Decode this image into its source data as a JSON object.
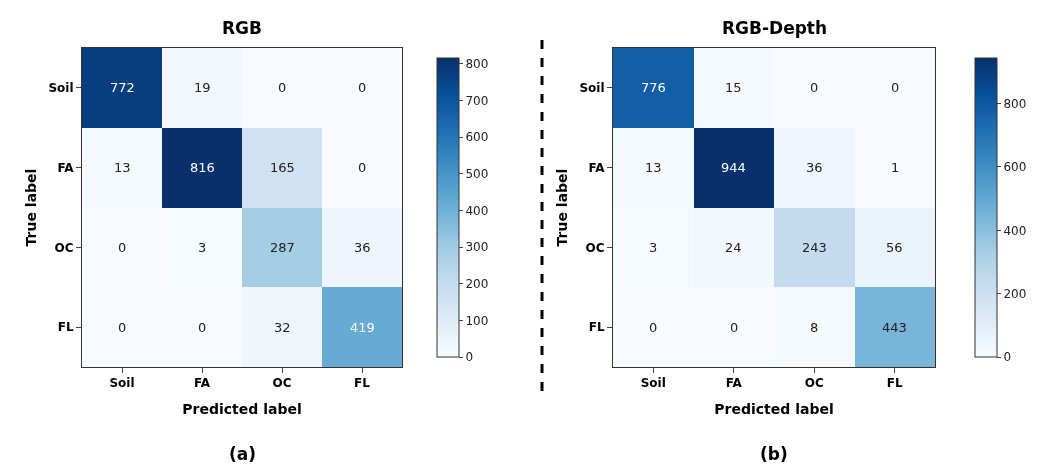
{
  "chart_data": [
    {
      "type": "heatmap",
      "title": "RGB",
      "xlabel": "Predicted label",
      "ylabel": "True label",
      "categories": [
        "Soil",
        "FA",
        "OC",
        "FL"
      ],
      "y_categories": [
        "Soil",
        "FA",
        "OC",
        "FL"
      ],
      "cells": [
        [
          772,
          19,
          0,
          0
        ],
        [
          13,
          816,
          165,
          0
        ],
        [
          0,
          3,
          287,
          36
        ],
        [
          0,
          0,
          32,
          419
        ]
      ],
      "clim": [
        0,
        816
      ],
      "cticks": [
        0,
        100,
        200,
        300,
        400,
        500,
        600,
        700,
        800
      ],
      "data_labels": true,
      "annotations": [
        "(a)"
      ]
    },
    {
      "type": "heatmap",
      "title": "RGB-Depth",
      "xlabel": "Predicted label",
      "ylabel": "True label",
      "categories": [
        "Soil",
        "FA",
        "OC",
        "FL"
      ],
      "y_categories": [
        "Soil",
        "FA",
        "OC",
        "FL"
      ],
      "cells": [
        [
          776,
          15,
          0,
          0
        ],
        [
          13,
          944,
          36,
          1
        ],
        [
          3,
          24,
          243,
          56
        ],
        [
          0,
          0,
          8,
          443
        ]
      ],
      "clim": [
        0,
        944
      ],
      "cticks": [
        0,
        200,
        400,
        600,
        800
      ],
      "data_labels": true,
      "annotations": [
        "(b)"
      ]
    }
  ]
}
